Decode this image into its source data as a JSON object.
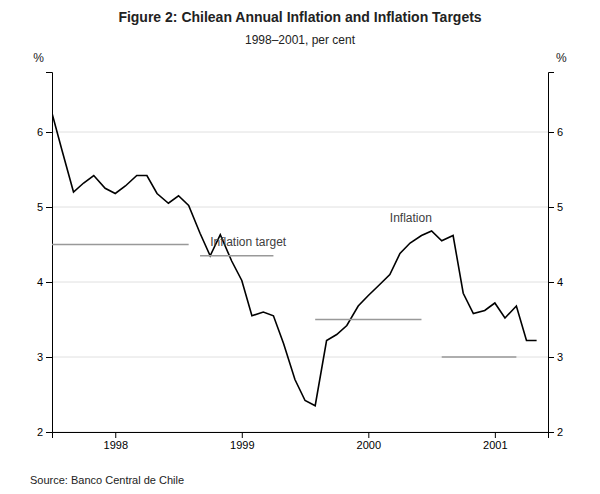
{
  "chart_data": {
    "type": "line",
    "title": "Figure 2: Chilean Annual Inflation and Inflation Targets",
    "subtitle": "1998–2001, per cent",
    "ylabel": "%",
    "y2label": "%",
    "source": "Source: Banco Central de Chile",
    "xlim": [
      1997.5,
      2001.42
    ],
    "xticks": [
      1998,
      1999,
      2000,
      2001
    ],
    "ylim": [
      2,
      6.8
    ],
    "yticks": [
      2,
      3,
      4,
      5,
      6
    ],
    "y2lim": [
      2,
      6.8
    ],
    "y2ticks": [
      2,
      3,
      4,
      5,
      6
    ],
    "grid": true,
    "series": [
      {
        "color": "#000000",
        "x": [
          1997.5,
          1997.58,
          1997.67,
          1997.75,
          1997.83,
          1997.92,
          1998.0,
          1998.08,
          1998.17,
          1998.25,
          1998.33,
          1998.42,
          1998.5,
          1998.58,
          1998.67,
          1998.75,
          1998.83,
          1998.92,
          1999.0,
          1999.08,
          1999.17,
          1999.25,
          1999.33,
          1999.42,
          1999.5,
          1999.58,
          1999.67,
          1999.75,
          1999.83,
          1999.92,
          2000.0,
          2000.08,
          2000.17,
          2000.25,
          2000.33,
          2000.42,
          2000.5,
          2000.58,
          2000.67,
          2000.75,
          2000.83,
          2000.92,
          2001.0,
          2001.08,
          2001.17,
          2001.25,
          2001.33
        ],
        "values": [
          6.25,
          5.75,
          5.2,
          5.32,
          5.42,
          5.25,
          5.18,
          5.28,
          5.42,
          5.42,
          5.18,
          5.05,
          5.15,
          5.02,
          4.65,
          4.35,
          4.63,
          4.28,
          4.02,
          3.55,
          3.6,
          3.55,
          3.18,
          2.7,
          2.42,
          2.35,
          3.22,
          3.3,
          3.42,
          3.68,
          3.82,
          3.95,
          4.1,
          4.38,
          4.52,
          4.62,
          4.68,
          4.55,
          4.62,
          3.85,
          3.58,
          3.62,
          3.72,
          3.52,
          3.68,
          3.22,
          3.22
        ]
      },
      {
        "color": "#999999",
        "x": [
          1997.5,
          1998.58
        ],
        "values": [
          4.5,
          4.5
        ]
      },
      {
        "color": "#999999",
        "x": [
          1998.67,
          1999.25
        ],
        "values": [
          4.35,
          4.35
        ]
      },
      {
        "color": "#999999",
        "x": [
          1999.58,
          2000.42
        ],
        "values": [
          3.5,
          3.5
        ]
      },
      {
        "color": "#999999",
        "x": [
          2000.58,
          2001.17
        ],
        "values": [
          3.0,
          3.0
        ]
      }
    ],
    "annotations": [
      {
        "text": "Inflation",
        "x": 2000.17,
        "y": 4.78
      },
      {
        "text": "Inflation target",
        "x": 1998.75,
        "y": 4.45
      }
    ]
  }
}
